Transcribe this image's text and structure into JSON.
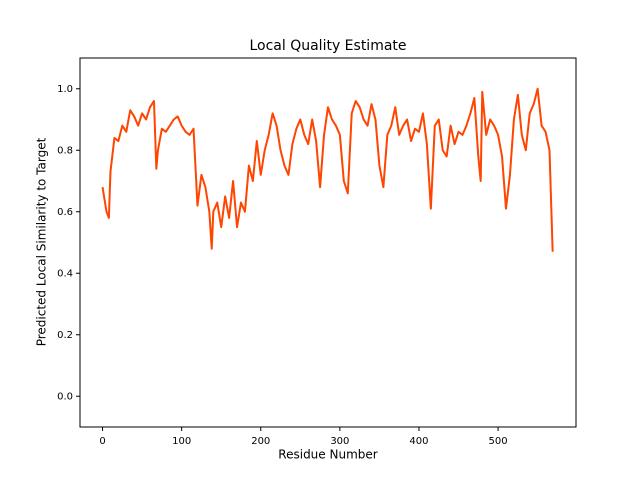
{
  "chart_data": {
    "type": "line",
    "title": "Local Quality Estimate",
    "x_label": "Residue Number",
    "y_label": "Predicted Local Similarity to Target",
    "color": "#ff4500",
    "x": [
      0,
      5,
      8,
      10,
      15,
      20,
      25,
      30,
      35,
      40,
      45,
      50,
      55,
      60,
      65,
      68,
      70,
      75,
      80,
      85,
      90,
      95,
      100,
      105,
      110,
      115,
      120,
      125,
      130,
      135,
      138,
      140,
      145,
      150,
      155,
      160,
      165,
      170,
      175,
      180,
      185,
      190,
      195,
      200,
      205,
      210,
      215,
      220,
      225,
      230,
      235,
      240,
      245,
      250,
      255,
      260,
      265,
      270,
      275,
      280,
      285,
      290,
      295,
      300,
      305,
      310,
      315,
      320,
      325,
      330,
      335,
      340,
      345,
      350,
      355,
      360,
      365,
      370,
      375,
      380,
      385,
      390,
      395,
      400,
      405,
      410,
      415,
      420,
      425,
      430,
      435,
      440,
      445,
      450,
      455,
      460,
      465,
      470,
      475,
      478,
      480,
      485,
      490,
      495,
      500,
      505,
      510,
      515,
      520,
      525,
      530,
      535,
      540,
      545,
      550,
      555,
      560,
      565,
      569
    ],
    "values": [
      0.68,
      0.6,
      0.58,
      0.73,
      0.84,
      0.83,
      0.88,
      0.86,
      0.93,
      0.91,
      0.88,
      0.92,
      0.9,
      0.94,
      0.96,
      0.74,
      0.8,
      0.87,
      0.86,
      0.88,
      0.9,
      0.91,
      0.88,
      0.86,
      0.85,
      0.87,
      0.62,
      0.72,
      0.68,
      0.6,
      0.48,
      0.6,
      0.63,
      0.55,
      0.65,
      0.58,
      0.7,
      0.55,
      0.63,
      0.6,
      0.75,
      0.7,
      0.83,
      0.72,
      0.8,
      0.85,
      0.92,
      0.88,
      0.8,
      0.75,
      0.72,
      0.82,
      0.87,
      0.9,
      0.85,
      0.82,
      0.9,
      0.83,
      0.68,
      0.85,
      0.94,
      0.9,
      0.88,
      0.85,
      0.7,
      0.66,
      0.92,
      0.96,
      0.94,
      0.9,
      0.88,
      0.95,
      0.9,
      0.75,
      0.68,
      0.85,
      0.88,
      0.94,
      0.85,
      0.88,
      0.9,
      0.83,
      0.87,
      0.86,
      0.92,
      0.82,
      0.61,
      0.88,
      0.9,
      0.8,
      0.78,
      0.88,
      0.82,
      0.86,
      0.85,
      0.88,
      0.92,
      0.97,
      0.78,
      0.7,
      0.99,
      0.85,
      0.9,
      0.88,
      0.85,
      0.78,
      0.61,
      0.72,
      0.9,
      0.98,
      0.85,
      0.8,
      0.92,
      0.95,
      1.0,
      0.88,
      0.86,
      0.8,
      0.47
    ],
    "xlim": [
      -28.5,
      598.5
    ],
    "xticks": [
      0,
      100,
      200,
      300,
      400,
      500
    ],
    "ylim": [
      -0.1,
      1.1
    ],
    "yticks": [
      {
        "value": 0,
        "label": "0.0"
      },
      0.2,
      0.4,
      0.6,
      0.8,
      {
        "value": 1,
        "label": "1.0"
      }
    ]
  }
}
